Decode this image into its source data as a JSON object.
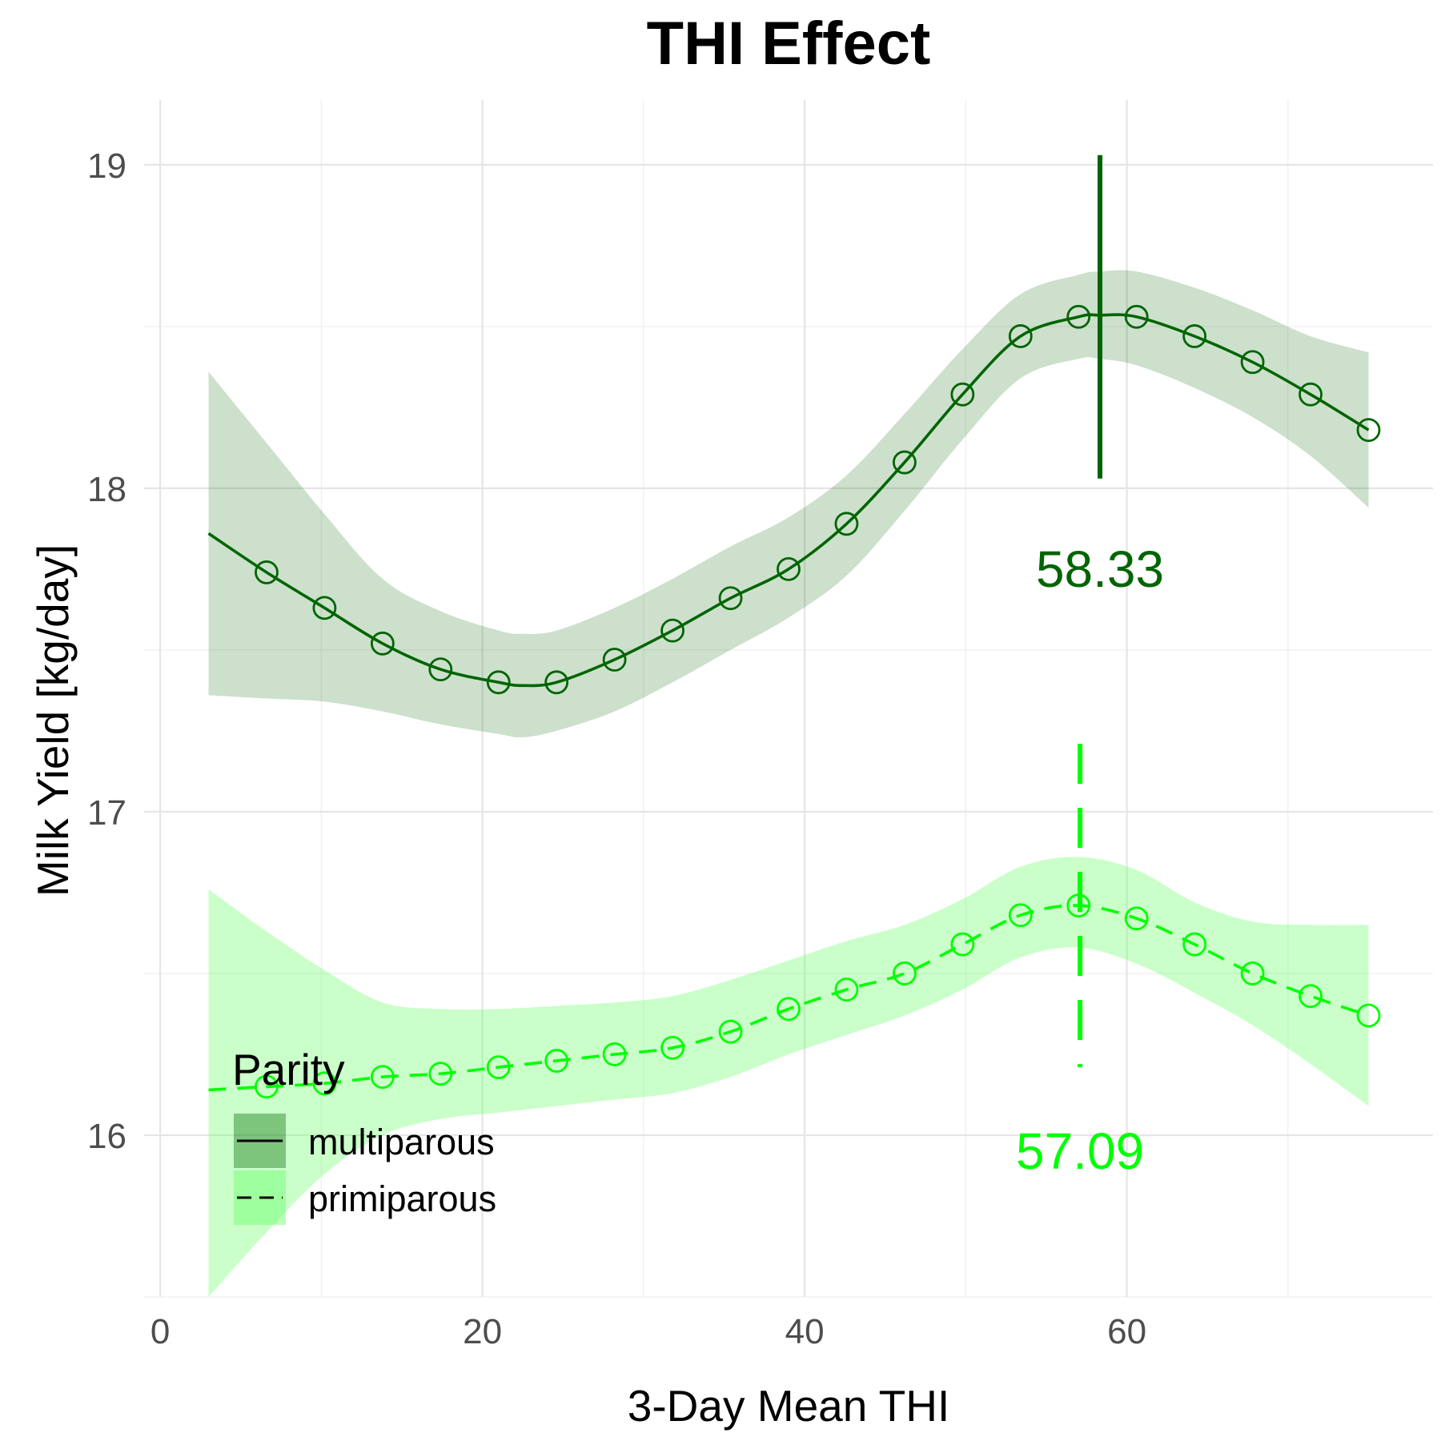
{
  "chart_data": {
    "type": "line",
    "title": "THI Effect",
    "xlabel": "3-Day Mean THI",
    "ylabel": "Milk Yield [kg/day]",
    "xlim": [
      -1,
      79
    ],
    "ylim": [
      15.5,
      19.2
    ],
    "x_ticks": [
      0,
      20,
      40,
      60
    ],
    "y_ticks": [
      16,
      17,
      18,
      19
    ],
    "x_minor": [
      10,
      30,
      50,
      70
    ],
    "y_minor": [
      15.5,
      16.5,
      17.5,
      18.5
    ],
    "grid": true,
    "legend": {
      "title": "Parity",
      "position": "bottom-left inside plot"
    },
    "series": [
      {
        "name": "multiparous",
        "color": "#006400",
        "fill": "#006400",
        "linetype": "solid",
        "curve": {
          "x": [
            3,
            6.6,
            10.2,
            13.8,
            17.4,
            21,
            22.5,
            24.6,
            28.2,
            31.8,
            35.4,
            39,
            42.6,
            46.2,
            49.8,
            53.4,
            57,
            58.3,
            60.6,
            64.2,
            67.8,
            71.4,
            75
          ],
          "y": [
            17.86,
            17.74,
            17.63,
            17.52,
            17.44,
            17.4,
            17.39,
            17.4,
            17.47,
            17.56,
            17.66,
            17.75,
            17.89,
            18.08,
            18.29,
            18.47,
            18.53,
            18.535,
            18.53,
            18.47,
            18.39,
            18.29,
            18.18
          ]
        },
        "ci_lower": [
          17.36,
          17.35,
          17.34,
          17.31,
          17.27,
          17.24,
          17.23,
          17.25,
          17.31,
          17.4,
          17.5,
          17.6,
          17.73,
          17.93,
          18.15,
          18.34,
          18.4,
          18.4,
          18.38,
          18.31,
          18.22,
          18.1,
          17.94
        ],
        "ci_upper": [
          18.36,
          18.14,
          17.92,
          17.72,
          17.62,
          17.56,
          17.55,
          17.56,
          17.63,
          17.72,
          17.82,
          17.91,
          18.04,
          18.23,
          18.43,
          18.6,
          18.66,
          18.67,
          18.67,
          18.62,
          18.55,
          18.47,
          18.42
        ],
        "points": {
          "x": [
            6.6,
            10.2,
            13.8,
            17.4,
            21,
            24.6,
            28.2,
            31.8,
            35.4,
            39,
            42.6,
            46.2,
            49.8,
            53.4,
            57,
            60.6,
            64.2,
            67.8,
            71.4,
            75
          ],
          "y": [
            17.74,
            17.63,
            17.52,
            17.44,
            17.4,
            17.4,
            17.47,
            17.56,
            17.66,
            17.75,
            17.89,
            18.08,
            18.29,
            18.47,
            18.53,
            18.53,
            18.47,
            18.39,
            18.29,
            18.18
          ]
        },
        "optimum": {
          "x": 58.33,
          "label": "58.33",
          "y_range": [
            18.03,
            19.03
          ],
          "label_y": 17.75
        }
      },
      {
        "name": "primiparous",
        "color": "#00ff00",
        "fill": "#66ff66",
        "linetype": "dashed",
        "curve": {
          "x": [
            3,
            6.6,
            10.2,
            13.8,
            17.4,
            21,
            24.6,
            28.2,
            31.8,
            35.4,
            39,
            42.6,
            46.2,
            49.8,
            53.4,
            57,
            60.6,
            64.2,
            67.8,
            71.4,
            75
          ],
          "y": [
            16.14,
            16.15,
            16.16,
            16.18,
            16.19,
            16.21,
            16.23,
            16.25,
            16.27,
            16.32,
            16.39,
            16.45,
            16.5,
            16.59,
            16.68,
            16.71,
            16.67,
            16.59,
            16.5,
            16.43,
            16.37
          ]
        },
        "ci_lower": [
          15.5,
          15.7,
          15.88,
          16.0,
          16.05,
          16.07,
          16.09,
          16.11,
          16.13,
          16.18,
          16.25,
          16.31,
          16.37,
          16.45,
          16.55,
          16.58,
          16.53,
          16.44,
          16.34,
          16.22,
          16.09
        ],
        "ci_upper": [
          16.76,
          16.63,
          16.51,
          16.41,
          16.39,
          16.39,
          16.4,
          16.41,
          16.43,
          16.48,
          16.54,
          16.6,
          16.65,
          16.73,
          16.83,
          16.86,
          16.82,
          16.72,
          16.66,
          16.65,
          16.65
        ],
        "points": {
          "x": [
            6.6,
            10.2,
            13.8,
            17.4,
            21,
            24.6,
            28.2,
            31.8,
            35.4,
            39,
            42.6,
            46.2,
            49.8,
            53.4,
            57,
            60.6,
            64.2,
            67.8,
            71.4,
            75
          ],
          "y": [
            16.15,
            16.16,
            16.18,
            16.19,
            16.21,
            16.23,
            16.25,
            16.27,
            16.32,
            16.39,
            16.45,
            16.5,
            16.59,
            16.68,
            16.71,
            16.67,
            16.59,
            16.5,
            16.43,
            16.37
          ]
        },
        "optimum": {
          "x": 57.09,
          "label": "57.09",
          "y_range": [
            16.21,
            17.21
          ],
          "label_y": 15.95
        }
      }
    ]
  }
}
